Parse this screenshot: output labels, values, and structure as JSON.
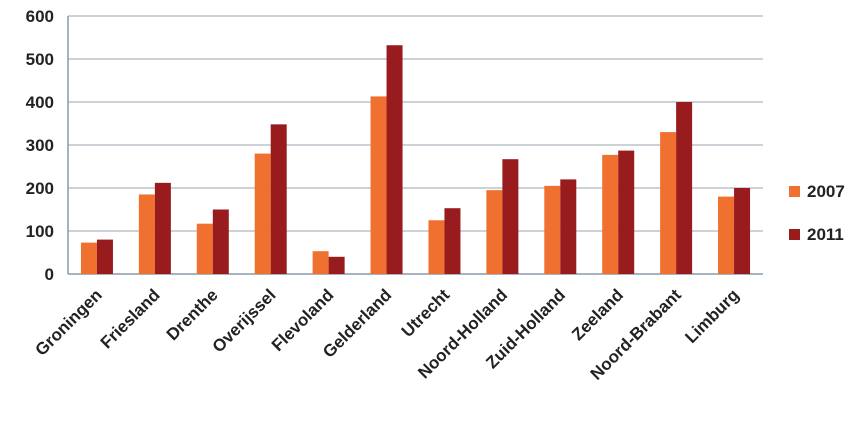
{
  "chart_data": {
    "type": "bar",
    "categories": [
      "Groningen",
      "Friesland",
      "Drenthe",
      "Overijssel",
      "Flevoland",
      "Gelderland",
      "Utrecht",
      "Noord-Holland",
      "Zuid-Holland",
      "Zeeland",
      "Noord-Brabant",
      "Limburg"
    ],
    "series": [
      {
        "name": "2007",
        "color": "#f07030",
        "values": [
          73,
          185,
          117,
          280,
          53,
          413,
          125,
          195,
          205,
          277,
          330,
          180
        ]
      },
      {
        "name": "2011",
        "color": "#981b1e",
        "values": [
          80,
          212,
          150,
          348,
          40,
          532,
          153,
          267,
          220,
          287,
          400,
          200
        ]
      }
    ],
    "title": "",
    "xlabel": "",
    "ylabel": "",
    "ylim": [
      0,
      600
    ],
    "yticks": [
      0,
      100,
      200,
      300,
      400,
      500,
      600
    ],
    "grid": true,
    "legend_position": "right"
  }
}
